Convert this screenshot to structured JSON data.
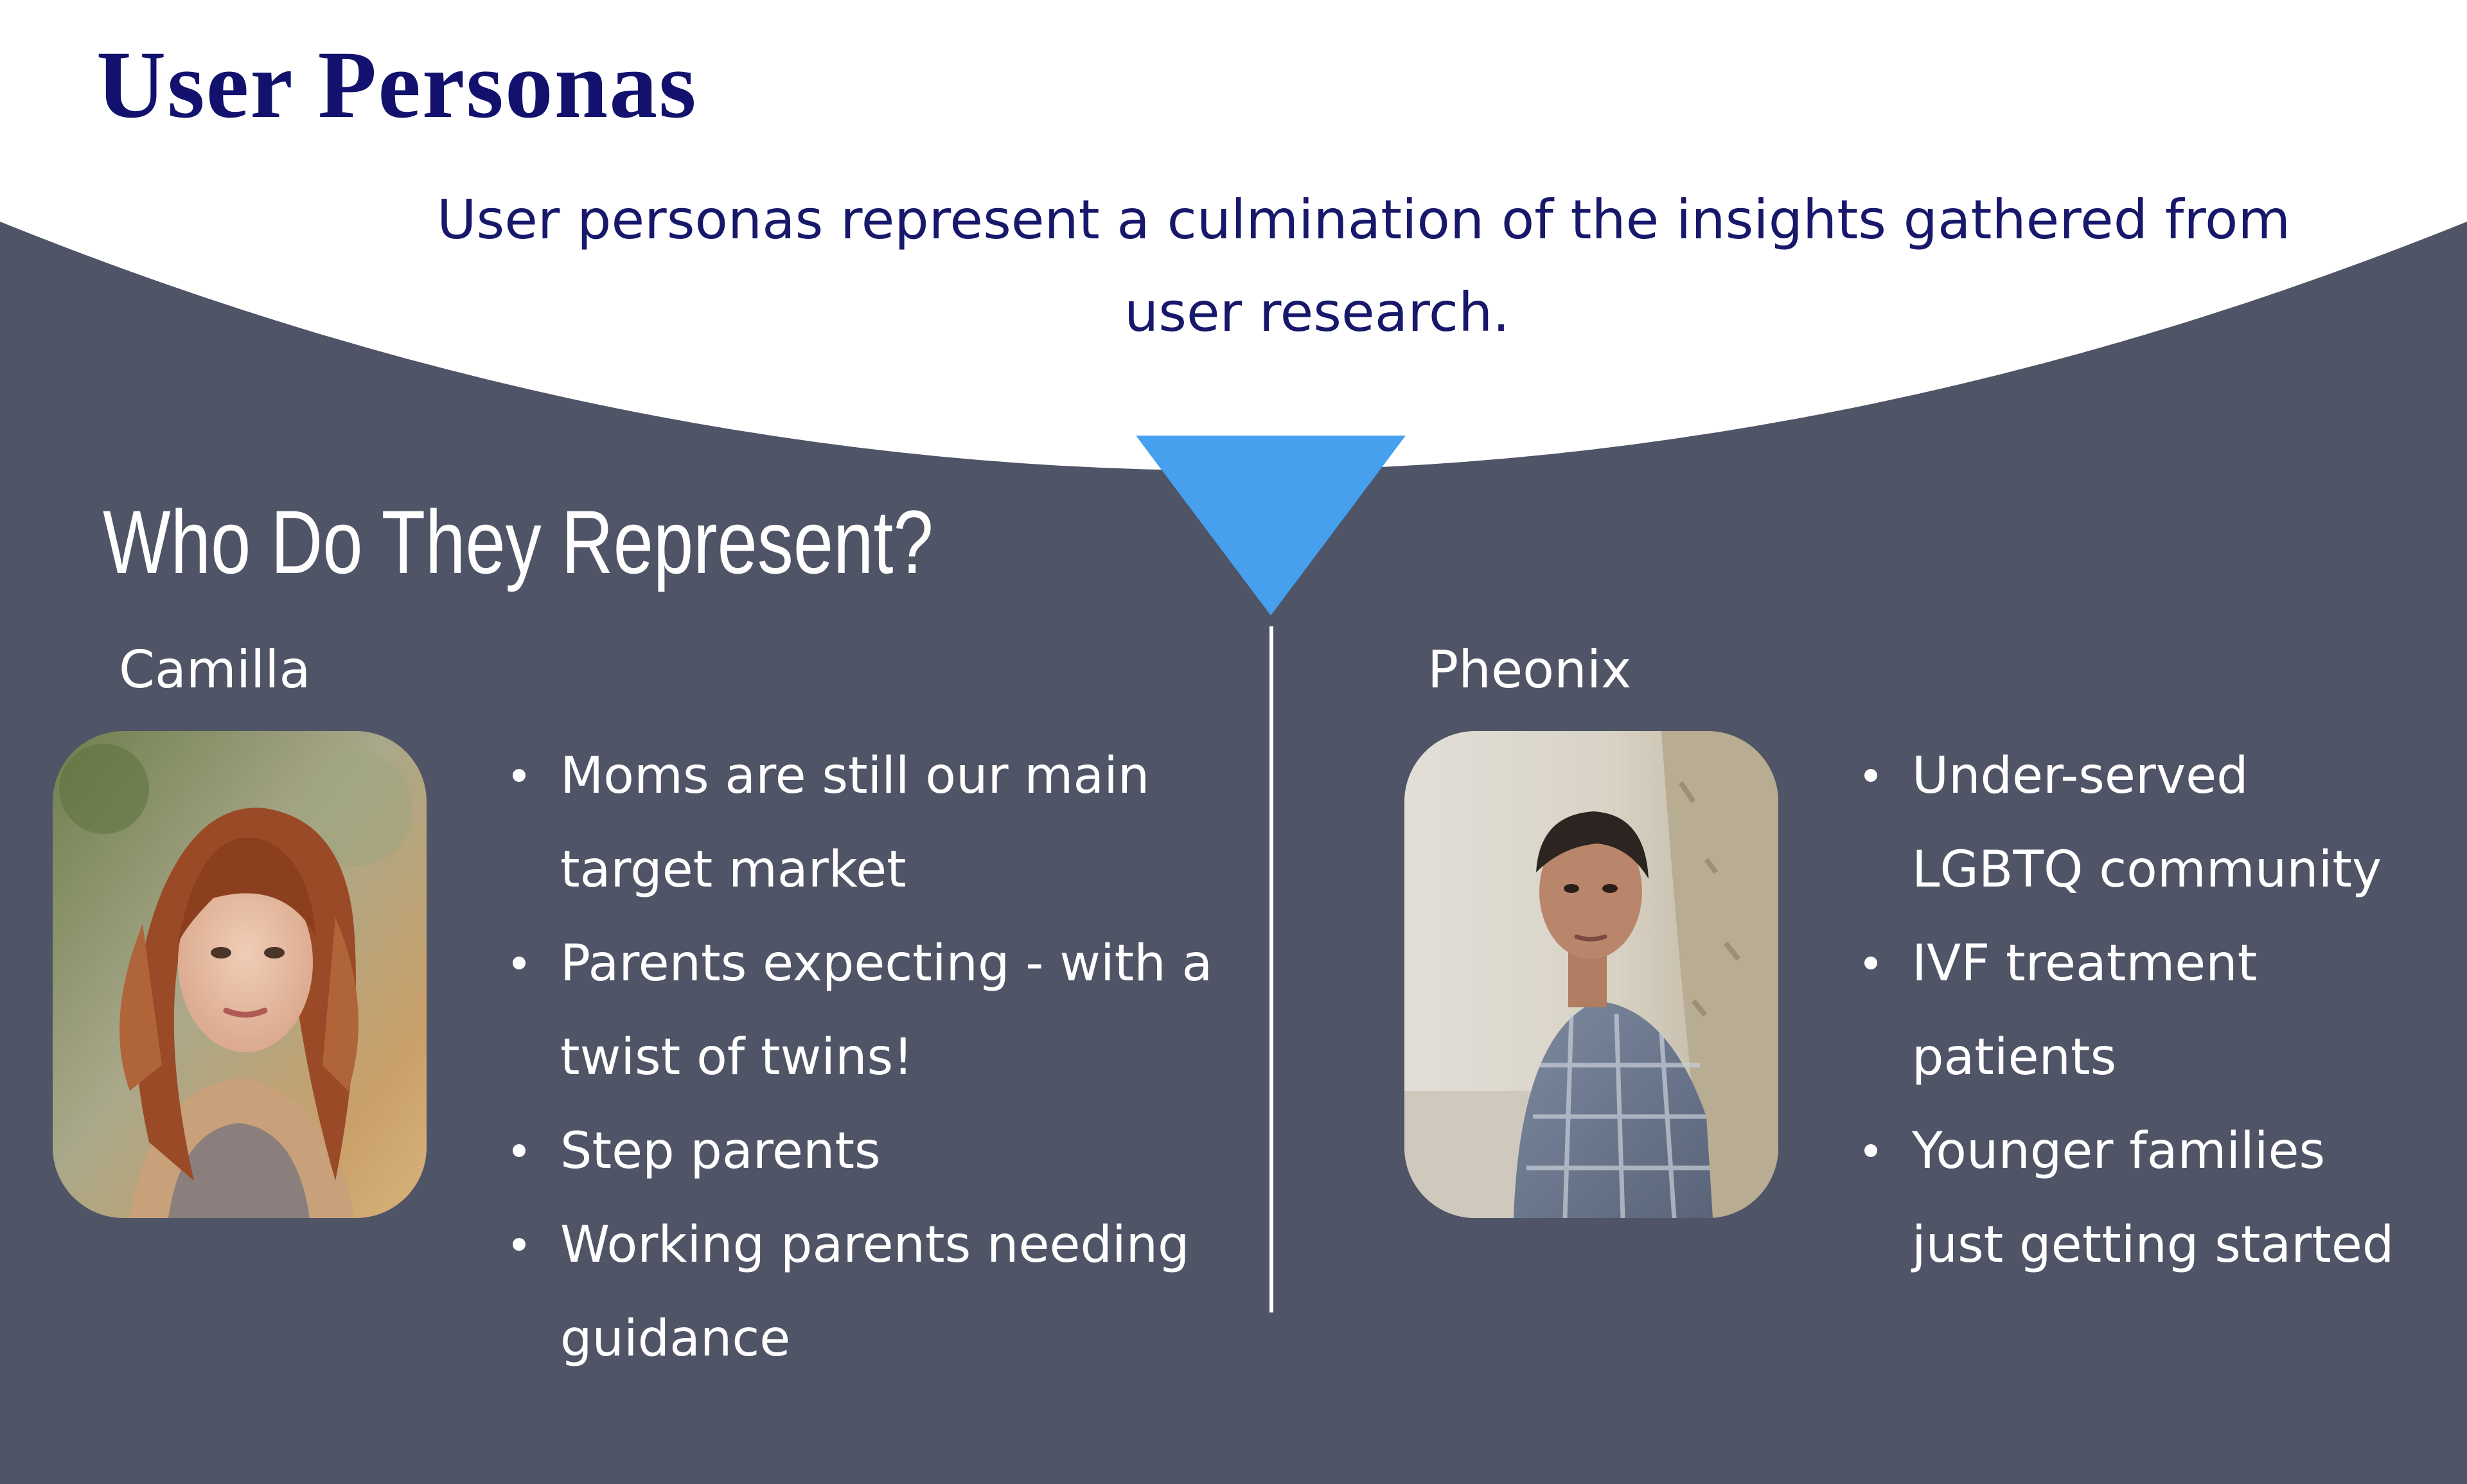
{
  "title": "User Personas",
  "intro": {
    "line1": "User personas represent a culmination of the insights gathered from",
    "line2": "user research."
  },
  "section_heading": "Who Do They Represent?",
  "colors": {
    "background": "#4f5466",
    "accent_triangle": "#47a0ee",
    "title": "#12126e",
    "white_band": "#ffffff"
  },
  "personas": [
    {
      "name": "Camilla",
      "photo_icon": "portrait-photo-woman-long-auburn-hair",
      "bullets": [
        "Moms are still our main",
        "target market",
        "Parents expecting - with a",
        "twist of twins!",
        "Step parents",
        "Working parents needing",
        "guidance"
      ],
      "bullet_items": [
        [
          "Moms are still our main",
          "target market"
        ],
        [
          "Parents expecting - with a",
          "twist of twins!"
        ],
        [
          "Step parents"
        ],
        [
          "Working parents needing",
          "guidance"
        ]
      ]
    },
    {
      "name": "Pheonix",
      "photo_icon": "portrait-photo-person-short-hair-plaid-shirt",
      "bullet_items": [
        [
          "Under-served",
          "LGBTQ community"
        ],
        [
          "IVF treatment",
          "patients"
        ],
        [
          "Younger families",
          "just getting started"
        ]
      ]
    }
  ]
}
